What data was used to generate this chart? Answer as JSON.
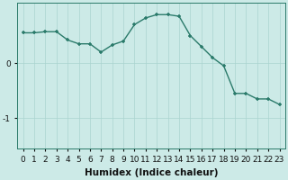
{
  "x": [
    0,
    1,
    2,
    3,
    4,
    5,
    6,
    7,
    8,
    9,
    10,
    11,
    12,
    13,
    14,
    15,
    16,
    17,
    18,
    19,
    20,
    21,
    22,
    23
  ],
  "y": [
    0.55,
    0.55,
    0.57,
    0.57,
    0.42,
    0.35,
    0.35,
    0.2,
    0.33,
    0.4,
    0.7,
    0.82,
    0.88,
    0.88,
    0.85,
    0.5,
    0.3,
    0.1,
    -0.05,
    -0.55,
    -0.55,
    -0.65,
    -0.65,
    -0.75
  ],
  "line_color": "#2a7a6a",
  "marker_color": "#2a7a6a",
  "bg_color": "#cceae7",
  "grid_color": "#aad4d0",
  "xlabel": "Humidex (Indice chaleur)",
  "xlim": [
    -0.5,
    23.5
  ],
  "ylim": [
    -1.55,
    1.1
  ],
  "yticks": [
    -1,
    0
  ],
  "ytick_labels": [
    "-1",
    "0"
  ],
  "xtick_labels": [
    "0",
    "1",
    "2",
    "3",
    "4",
    "5",
    "6",
    "7",
    "8",
    "9",
    "10",
    "11",
    "12",
    "13",
    "14",
    "15",
    "16",
    "17",
    "18",
    "19",
    "20",
    "21",
    "22",
    "23"
  ],
  "xlabel_fontsize": 7.5,
  "tick_fontsize": 6.5
}
